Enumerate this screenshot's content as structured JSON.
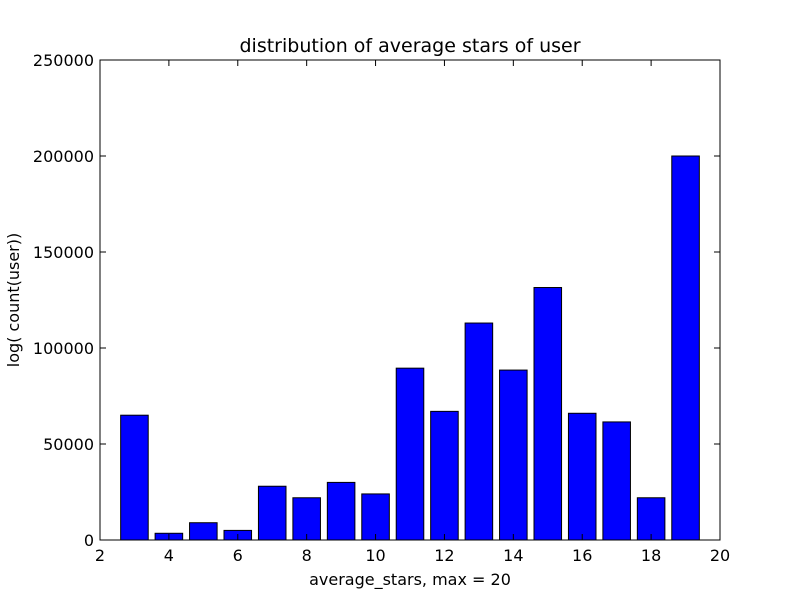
{
  "chart_data": {
    "type": "bar",
    "title": "distribution of average stars of user",
    "xlabel": "average_stars, max = 20",
    "ylabel": "log( count(user))",
    "xlim": [
      2,
      20
    ],
    "ylim": [
      0,
      250000
    ],
    "xticks": [
      2,
      4,
      6,
      8,
      10,
      12,
      14,
      16,
      18,
      20
    ],
    "yticks": [
      0,
      50000,
      100000,
      150000,
      200000,
      250000
    ],
    "bar_width": 0.8,
    "bar_color": "#0000ff",
    "edge_color": "#000000",
    "grid": false,
    "legend": "none",
    "series": [
      {
        "x": [
          3,
          4,
          5,
          6,
          7,
          8,
          9,
          10,
          11,
          12,
          13,
          14,
          15,
          16,
          17,
          18,
          19
        ],
        "values": [
          65000,
          3500,
          9000,
          5000,
          28000,
          22000,
          30000,
          24000,
          89500,
          67000,
          113000,
          88500,
          131500,
          66000,
          61500,
          22000,
          200000
        ]
      }
    ]
  }
}
